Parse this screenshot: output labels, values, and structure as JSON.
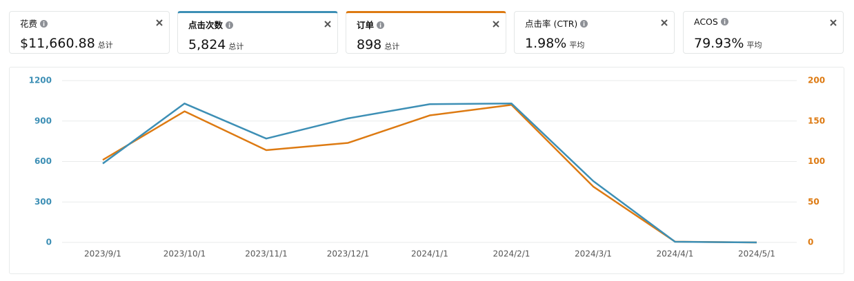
{
  "cards": [
    {
      "label": "花费",
      "value": "$11,660.88",
      "unit": "总计"
    },
    {
      "label": "点击次数",
      "value": "5,824",
      "unit": "总计",
      "accent": "#3d8fb5"
    },
    {
      "label": "订单",
      "value": "898",
      "unit": "总计",
      "accent": "#dd7a12"
    },
    {
      "label": "点击率 (CTR)",
      "value": "1.98%",
      "unit": "平均"
    },
    {
      "label": "ACOS",
      "value": "79.93%",
      "unit": "平均"
    }
  ],
  "chart_data": {
    "type": "line",
    "categories": [
      "2023/9/1",
      "2023/10/1",
      "2023/11/1",
      "2023/12/1",
      "2024/1/1",
      "2024/2/1",
      "2024/3/1",
      "2024/4/1",
      "2024/5/1"
    ],
    "series": [
      {
        "color": "#3d8fb5",
        "values": [
          585,
          1030,
          770,
          920,
          1025,
          1030,
          455,
          5,
          0
        ]
      },
      {
        "color": "#dd7a12",
        "axis": "y2",
        "values": [
          102,
          162,
          114,
          123,
          157,
          170,
          69,
          1,
          0
        ]
      }
    ],
    "ylim": [
      0,
      1200
    ],
    "yticks": [
      0,
      300,
      600,
      900,
      1200
    ],
    "y2lim": [
      0,
      200
    ],
    "y2ticks": [
      0,
      50,
      100,
      150,
      200
    ],
    "grid": true
  }
}
